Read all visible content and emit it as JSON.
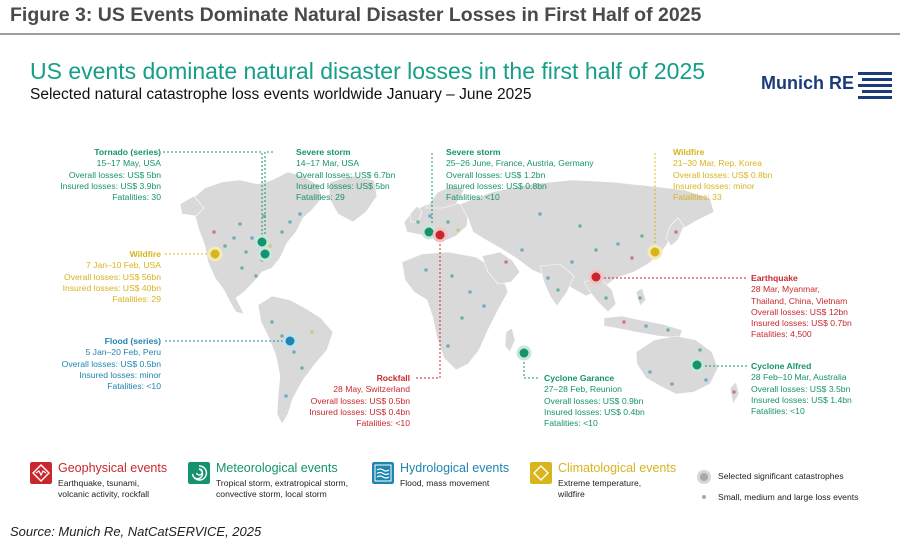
{
  "figure_title": "Figure 3: US Events Dominate Natural Disaster Losses in First Half of 2025",
  "headline": "US events dominate natural disaster losses in the first half of 2025",
  "subheadline": "Selected natural catastrophe loss events worldwide January – June 2025",
  "brand": "Munich RE",
  "colors": {
    "geophysical": "#c8282d",
    "meteorological": "#15936f",
    "hydrological": "#1d86b0",
    "climatological": "#d8b41d",
    "land": "#d9d9d9",
    "title": "#159e88"
  },
  "events": [
    {
      "id": "tornado",
      "category": "meteorological",
      "title": "Tornado (series)",
      "lines": [
        "15–17 May, USA",
        "Overall losses: US$ 5bn",
        "Insured losses: US$ 3.9bn",
        "Fatalities: 30"
      ]
    },
    {
      "id": "storm-us",
      "category": "meteorological",
      "title": "Severe storm",
      "lines": [
        "14–17 Mar, USA",
        "Overall losses: US$ 6.7bn",
        "Insured losses: US$ 5bn",
        "Fatalities: 29"
      ]
    },
    {
      "id": "storm-eu",
      "category": "meteorological",
      "title": "Severe storm",
      "lines": [
        "25–26 June, France, Austria, Germany",
        "Overall losses: US$ 1.2bn",
        "Insured losses: US$ 0.8bn",
        "Fatalities: <10"
      ]
    },
    {
      "id": "wildfire-kr",
      "category": "climatological",
      "title": "Wildfire",
      "lines": [
        "21–30 Mar, Rep. Korea",
        "Overall losses: US$ 0.8bn",
        "Insured losses: minor",
        "Fatalities: 33"
      ]
    },
    {
      "id": "wildfire-us",
      "category": "climatological",
      "title": "Wildfire",
      "lines": [
        "7 Jan–10 Feb, USA",
        "Overall losses: US$ 56bn",
        "Insured losses: US$ 40bn",
        "Fatalities: 29"
      ]
    },
    {
      "id": "quake",
      "category": "geophysical",
      "title": "Earthquake",
      "lines": [
        "28 Mar, Myanmar,",
        "Thailand, China, Vietnam",
        "Overall losses: US$ 12bn",
        "Insured losses: US$ 0.7bn",
        "Fatalities: 4,500"
      ]
    },
    {
      "id": "flood-peru",
      "category": "hydrological",
      "title": "Flood (series)",
      "lines": [
        "5 Jan–20 Feb, Peru",
        "Overall losses: US$ 0.5bn",
        "Insured losses: minor",
        "Fatalities: <10"
      ]
    },
    {
      "id": "rockfall",
      "category": "geophysical",
      "title": "Rockfall",
      "lines": [
        "28 May, Switzerland",
        "Overall losses: US$ 0.5bn",
        "Insured losses: US$ 0.4bn",
        "Fatalities: <10"
      ]
    },
    {
      "id": "garance",
      "category": "meteorological",
      "title": "Cyclone Garance",
      "lines": [
        "27–28 Feb, Reunion",
        "Overall losses: US$ 0.9bn",
        "Insured losses: US$ 0.4bn",
        "Fatalities: <10"
      ]
    },
    {
      "id": "alfred",
      "category": "meteorological",
      "title": "Cyclone Alfred",
      "lines": [
        "28 Feb–10 Mar, Australia",
        "Overall losses: US$ 3.5bn",
        "Insured losses: US$ 1.4bn",
        "Fatalities: <10"
      ]
    }
  ],
  "legend": {
    "categories": [
      {
        "title": "Geophysical events",
        "desc": [
          "Earthquake, tsunami,",
          "volcanic activity, rockfall"
        ],
        "icon": "diamond-zigzag-icon"
      },
      {
        "title": "Meteorological events",
        "desc": [
          "Tropical storm, extratropical storm,",
          "convective storm, local storm"
        ],
        "icon": "swirl-icon"
      },
      {
        "title": "Hydrological events",
        "desc": [
          "Flood, mass movement"
        ],
        "icon": "waves-icon"
      },
      {
        "title": "Climatological events",
        "desc": [
          "Extreme temperature,",
          "wildfire"
        ],
        "icon": "diamond-outline-icon"
      }
    ],
    "selected_label": "Selected significant catastrophes",
    "small_label": "Small, medium and large loss events"
  },
  "source": "Source: Munich Re, NatCatSERVICE, 2025"
}
